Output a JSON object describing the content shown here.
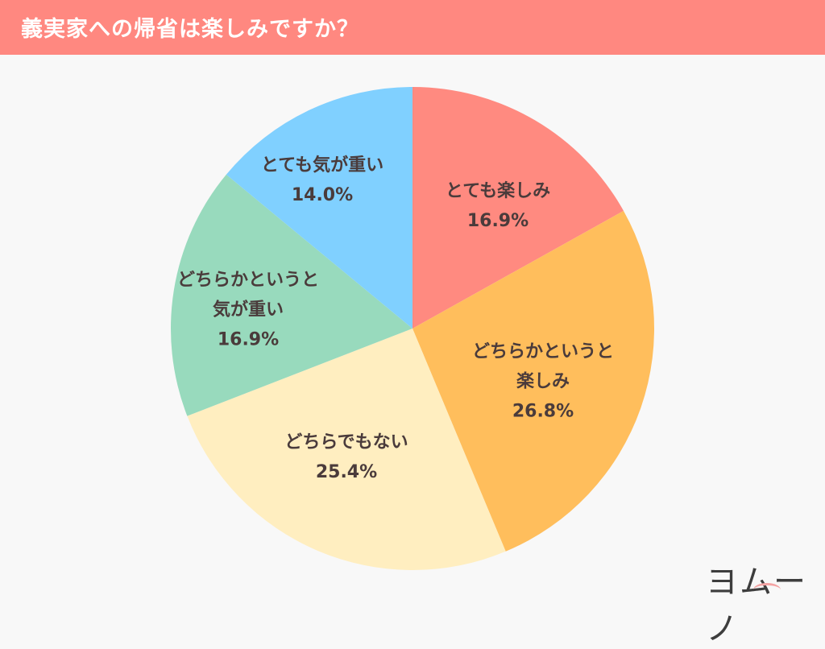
{
  "header": {
    "title": "義実家への帰省は楽しみですか？",
    "background": "#ff8880"
  },
  "logo": {
    "text": "ヨムーノ"
  },
  "chart_data": {
    "type": "pie",
    "title": "義実家への帰省は楽しみですか？",
    "start_angle_deg": 0,
    "direction": "clockwise",
    "slices": [
      {
        "label": "とても楽しみ",
        "value": 16.9,
        "pct_label": "16.9%",
        "color": "#ff8a80"
      },
      {
        "label": "どちらかというと楽しみ",
        "value": 26.8,
        "pct_label": "26.8%",
        "color": "#ffbe5c"
      },
      {
        "label": "どちらでもない",
        "value": 25.4,
        "pct_label": "25.4%",
        "color": "#ffeec0"
      },
      {
        "label": "どちらかというと気が重い",
        "value": 16.9,
        "pct_label": "16.9%",
        "color": "#98dabd"
      },
      {
        "label": "とても気が重い",
        "value": 14.0,
        "pct_label": "14.0%",
        "color": "#80d0ff"
      }
    ]
  },
  "labels": [
    {
      "lines": [
        "とても楽しみ"
      ],
      "pct": "16.9%"
    },
    {
      "lines": [
        "どちらかというと",
        "楽しみ"
      ],
      "pct": "26.8%"
    },
    {
      "lines": [
        "どちらでもない"
      ],
      "pct": "25.4%"
    },
    {
      "lines": [
        "どちらかというと",
        "気が重い"
      ],
      "pct": "16.9%"
    },
    {
      "lines": [
        "とても気が重い"
      ],
      "pct": "14.0%"
    }
  ]
}
